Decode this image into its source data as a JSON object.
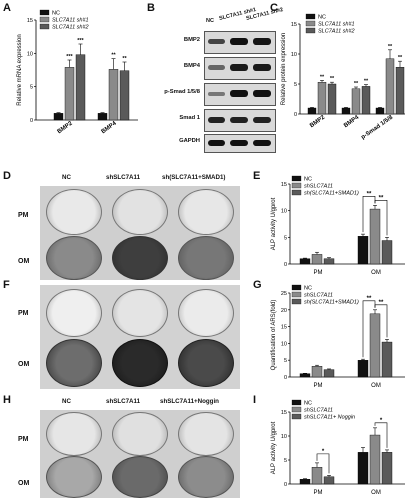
{
  "panels": {
    "A": "A",
    "B": "B",
    "C": "C",
    "D": "D",
    "E": "E",
    "F": "F",
    "G": "G",
    "H": "H",
    "I": "I"
  },
  "colors": {
    "NC": "#111111",
    "sh1": "#8a8a8a",
    "sh2": "#5a5a5a",
    "OM_light": "#9a9a9a"
  },
  "western_blot": {
    "col_labels": [
      "NC",
      "SLC7A11 sh#1",
      "SLC7A11 sh#2"
    ],
    "row_labels": [
      "BMP2",
      "BMP4",
      "p-Smad 1/5/8",
      "Smad 1",
      "GAPDH"
    ]
  },
  "dishes_D": {
    "cols": [
      "NC",
      "shSLC7A11",
      "sh(SLC7A11+SMAD1)"
    ],
    "rows": [
      "PM",
      "OM"
    ]
  },
  "dishes_F": {
    "rows": [
      "PM",
      "OM"
    ]
  },
  "dishes_H": {
    "cols": [
      "NC",
      "shSLC7A11",
      "shSLC7A11+Noggin"
    ],
    "rows": [
      "PM",
      "OM"
    ]
  },
  "chart_data": [
    {
      "panel": "A",
      "type": "bar",
      "ylabel": "Relative mRNA expression",
      "categories": [
        "BMP2",
        "BMP4"
      ],
      "ylim": [
        0,
        15
      ],
      "yticks": [
        0,
        5,
        10,
        15
      ],
      "series": [
        {
          "name": "NC",
          "values": [
            1,
            1
          ],
          "errors": [
            0.1,
            0.1
          ],
          "sig": [
            "",
            ""
          ]
        },
        {
          "name": "SLC7A11 sh#1",
          "values": [
            7.9,
            7.6
          ],
          "errors": [
            1.1,
            1.6
          ],
          "sig": [
            "***",
            "**"
          ]
        },
        {
          "name": "SLC7A11 sh#2",
          "values": [
            9.8,
            7.4
          ],
          "errors": [
            1.6,
            1.3
          ],
          "sig": [
            "***",
            "**"
          ]
        }
      ]
    },
    {
      "panel": "C",
      "type": "bar",
      "ylabel": "Relative protein expression",
      "categories": [
        "BMP2",
        "BMP4",
        "p-Smad 1/5/8"
      ],
      "ylim": [
        0,
        15
      ],
      "yticks": [
        0,
        5,
        10,
        15
      ],
      "series": [
        {
          "name": "NC",
          "values": [
            1,
            1,
            1
          ],
          "errors": [
            0.1,
            0.1,
            0.1
          ],
          "sig": [
            "",
            "",
            ""
          ]
        },
        {
          "name": "SLC7A11 sh#1",
          "values": [
            5.3,
            4.2,
            9.2
          ],
          "errors": [
            0.3,
            0.3,
            1.5
          ],
          "sig": [
            "**",
            "**",
            "**"
          ]
        },
        {
          "name": "SLC7A11 sh#2",
          "values": [
            5.0,
            4.6,
            7.8
          ],
          "errors": [
            0.3,
            0.3,
            1.0
          ],
          "sig": [
            "**",
            "**",
            "**"
          ]
        }
      ]
    },
    {
      "panel": "E",
      "type": "bar",
      "ylabel": "ALP activity U/gprot",
      "categories": [
        "PM",
        "OM"
      ],
      "ylim": [
        0,
        15
      ],
      "yticks": [
        0,
        5,
        10,
        15
      ],
      "brackets": [
        {
          "cat": 1,
          "from": 0,
          "to": 1,
          "label": "**"
        },
        {
          "cat": 1,
          "from": 1,
          "to": 2,
          "label": "**"
        }
      ],
      "series": [
        {
          "name": "NC",
          "values": [
            1.0,
            5.2
          ],
          "errors": [
            0.1,
            0.4
          ]
        },
        {
          "name": "shSLC7A11",
          "values": [
            1.8,
            10.3
          ],
          "errors": [
            0.4,
            0.7
          ]
        },
        {
          "name": "sh(SLC7A11+SMAD1)",
          "values": [
            1.0,
            4.4
          ],
          "errors": [
            0.2,
            0.6
          ]
        }
      ]
    },
    {
      "panel": "G",
      "type": "bar",
      "ylabel": "Quantification of ARS(fold)",
      "categories": [
        "PM",
        "OM"
      ],
      "ylim": [
        0,
        25
      ],
      "yticks": [
        0,
        5,
        10,
        15,
        20,
        25
      ],
      "brackets": [
        {
          "cat": 1,
          "from": 0,
          "to": 1,
          "label": "**"
        },
        {
          "cat": 1,
          "from": 1,
          "to": 2,
          "label": "**"
        }
      ],
      "series": [
        {
          "name": "NC",
          "values": [
            1.0,
            5.0
          ],
          "errors": [
            0.1,
            0.3
          ]
        },
        {
          "name": "shSLC7A11",
          "values": [
            3.2,
            18.8
          ],
          "errors": [
            0.3,
            1.2
          ]
        },
        {
          "name": "sh(SLC7A11+SMAD1)",
          "values": [
            2.2,
            10.4
          ],
          "errors": [
            0.2,
            0.8
          ]
        }
      ]
    },
    {
      "panel": "I",
      "type": "bar",
      "ylabel": "ALP activity U/gprot",
      "categories": [
        "PM",
        "OM"
      ],
      "ylim": [
        0,
        15
      ],
      "yticks": [
        0,
        5,
        10,
        15
      ],
      "brackets": [
        {
          "cat": 0,
          "from": 1,
          "to": 2,
          "label": "*"
        },
        {
          "cat": 1,
          "from": 1,
          "to": 2,
          "label": "*"
        }
      ],
      "series": [
        {
          "name": "NC",
          "values": [
            1.0,
            6.6
          ],
          "errors": [
            0.1,
            1.0
          ]
        },
        {
          "name": "shSLC7A11",
          "values": [
            3.5,
            10.2
          ],
          "errors": [
            0.9,
            1.5
          ]
        },
        {
          "name": "shSLC7A11+ Noggin",
          "values": [
            1.5,
            6.6
          ],
          "errors": [
            0.3,
            0.5
          ]
        }
      ]
    }
  ]
}
